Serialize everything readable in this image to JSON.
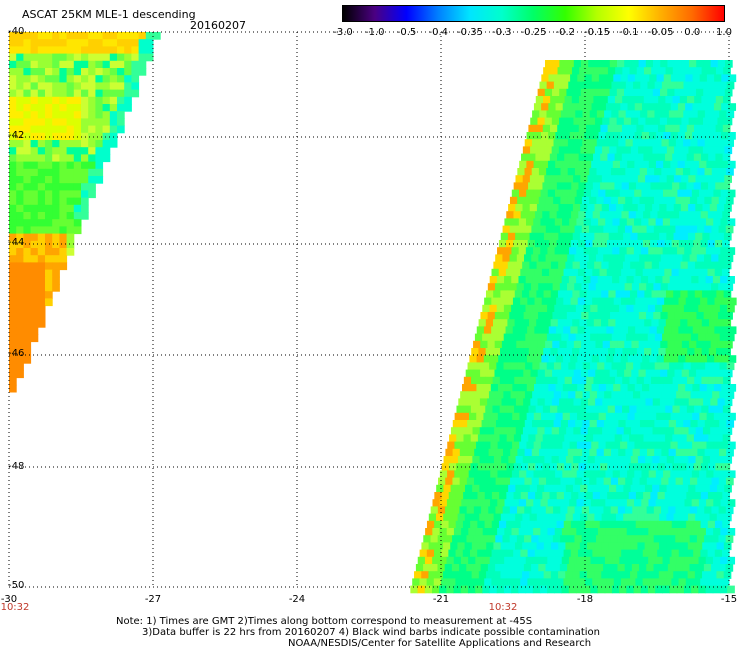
{
  "header": {
    "title": "ASCAT 25KM MLE-1 descending",
    "date": "20160207"
  },
  "colorbar": {
    "ticks": [
      "-3.0",
      "-1.0",
      "-0.5",
      "-0.4",
      "-0.35",
      "-0.3",
      "-0.25",
      "-0.2",
      "-0.15",
      "-0.1",
      "-0.05",
      "0.0",
      "1.0"
    ],
    "colors": [
      "#000000",
      "#4b0082",
      "#0000ff",
      "#0080ff",
      "#00e5ff",
      "#00ffcc",
      "#00ff66",
      "#33ff00",
      "#b4ff00",
      "#ffff00",
      "#ffb000",
      "#ff6a00",
      "#ff0000"
    ]
  },
  "map": {
    "lat_labels": [
      "-40",
      "-42",
      "-44",
      "-46",
      "-48",
      "-50"
    ],
    "lon_labels": [
      "-30",
      "-27",
      "-24",
      "-21",
      "-18",
      "-15"
    ],
    "time_labels": [
      "10:32",
      "10:32"
    ],
    "lat_range": [
      -50,
      -40
    ],
    "lon_range": [
      -30,
      -15
    ]
  },
  "notes": {
    "line1": "Note: 1) Times are GMT 2)Times along bottom correspond to measurement at -45S",
    "line2": "3)Data buffer is 22 hrs from 20160207 4) Black wind barbs indicate possible contamination",
    "line3": "NOAA/NESDIS/Center for Satellite Applications and Research"
  }
}
